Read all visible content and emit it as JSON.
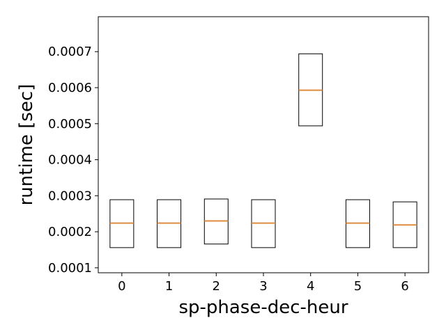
{
  "chart_data": {
    "type": "boxplot",
    "xlabel": "sp-phase-dec-heur",
    "ylabel": "runtime [sec]",
    "ylim": [
      8.62e-05,
      0.000797
    ],
    "yticks": [
      0.0001,
      0.0002,
      0.0003,
      0.0004,
      0.0005,
      0.0006,
      0.0007
    ],
    "ytick_labels": [
      "0.0001",
      "0.0002",
      "0.0003",
      "0.0004",
      "0.0005",
      "0.0006",
      "0.0007"
    ],
    "categories": [
      "0",
      "1",
      "2",
      "3",
      "4",
      "5",
      "6"
    ],
    "highlight_category": "4",
    "highlight_color": "#d40000",
    "box_color": "#000000",
    "median_color": "#e08a3c",
    "boxes": [
      {
        "category": "0",
        "q1": 0.000156,
        "median": 0.000224,
        "q3": 0.000289
      },
      {
        "category": "1",
        "q1": 0.000156,
        "median": 0.000224,
        "q3": 0.000289
      },
      {
        "category": "2",
        "q1": 0.000166,
        "median": 0.00023,
        "q3": 0.000291
      },
      {
        "category": "3",
        "q1": 0.000156,
        "median": 0.000224,
        "q3": 0.000289
      },
      {
        "category": "4",
        "q1": 0.000494,
        "median": 0.000593,
        "q3": 0.000694
      },
      {
        "category": "5",
        "q1": 0.000156,
        "median": 0.000224,
        "q3": 0.000289
      },
      {
        "category": "6",
        "q1": 0.000156,
        "median": 0.000219,
        "q3": 0.000283
      }
    ]
  }
}
